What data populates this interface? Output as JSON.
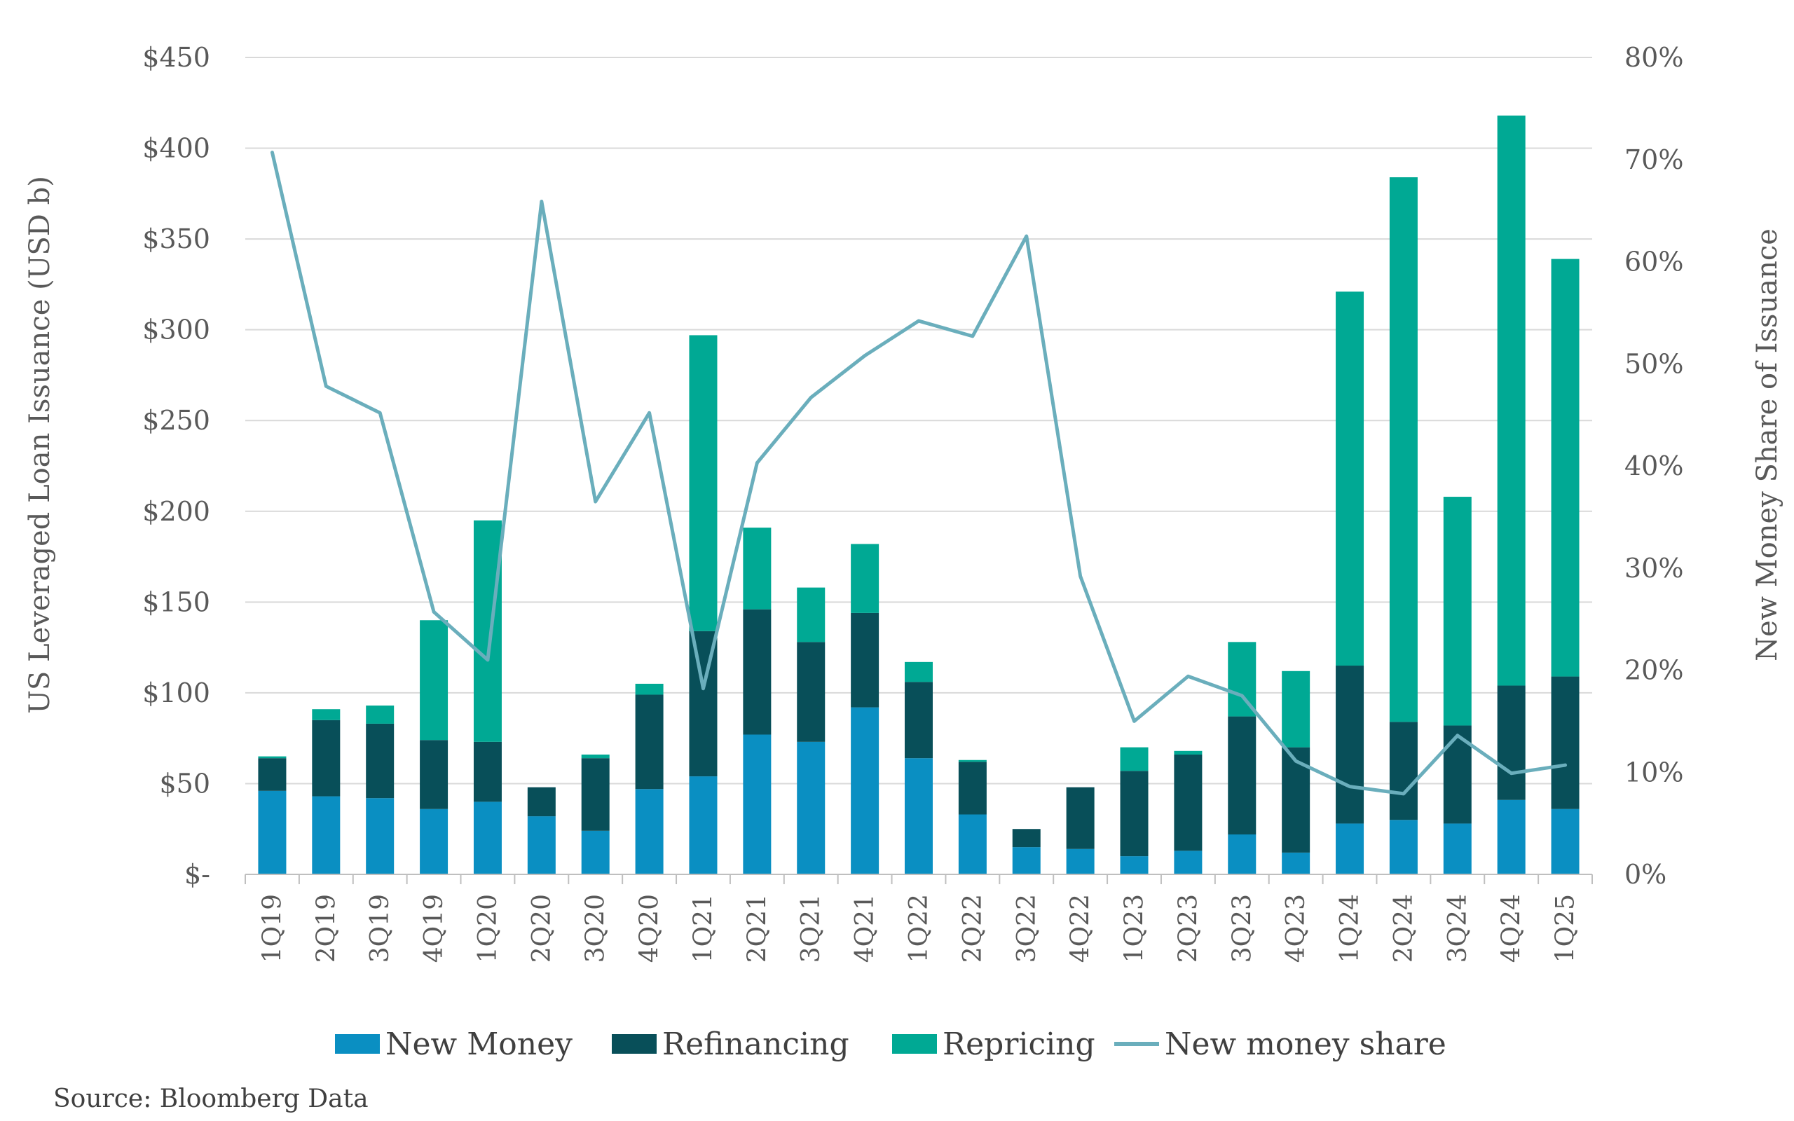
{
  "chart_data": {
    "type": "bar",
    "stacked": true,
    "categories": [
      "1Q19",
      "2Q19",
      "3Q19",
      "4Q19",
      "1Q20",
      "2Q20",
      "3Q20",
      "4Q20",
      "1Q21",
      "2Q21",
      "3Q21",
      "4Q21",
      "1Q22",
      "2Q22",
      "3Q22",
      "4Q22",
      "1Q23",
      "2Q23",
      "3Q23",
      "4Q23",
      "1Q24",
      "2Q24",
      "3Q24",
      "4Q24",
      "1Q25"
    ],
    "series": [
      {
        "name": "New Money",
        "type": "bar",
        "axis": "left",
        "color": "#0A8FC2",
        "values": [
          46,
          43,
          42,
          36,
          40,
          32,
          24,
          47,
          54,
          77,
          73,
          92,
          64,
          33,
          15,
          14,
          10,
          13,
          22,
          12,
          28,
          30,
          28,
          41,
          36
        ]
      },
      {
        "name": "Refinancing",
        "type": "bar",
        "axis": "left",
        "color": "#084F59",
        "values": [
          18,
          42,
          41,
          38,
          33,
          16,
          40,
          52,
          80,
          69,
          55,
          52,
          42,
          29,
          10,
          34,
          47,
          53,
          65,
          58,
          87,
          54,
          54,
          63,
          73
        ]
      },
      {
        "name": "Repricing",
        "type": "bar",
        "axis": "left",
        "color": "#00A994",
        "values": [
          1,
          6,
          10,
          66,
          122,
          0,
          2,
          6,
          163,
          45,
          30,
          38,
          11,
          1,
          0,
          0,
          13,
          2,
          41,
          42,
          206,
          300,
          126,
          314,
          230
        ]
      },
      {
        "name": "New money share",
        "type": "line",
        "axis": "right",
        "color": "#6AAEBC",
        "values": [
          70.7,
          47.8,
          45.2,
          25.7,
          21.0,
          65.9,
          36.5,
          45.2,
          18.2,
          40.3,
          46.7,
          50.8,
          54.2,
          52.7,
          62.5,
          29.2,
          15.0,
          19.4,
          17.5,
          11.1,
          8.6,
          7.9,
          13.6,
          9.9,
          10.7
        ]
      }
    ],
    "left_axis": {
      "label": "US Leveraged Loan Issuance (USD b)",
      "min": 0,
      "max": 450,
      "ticks": [
        0,
        50,
        100,
        150,
        200,
        250,
        300,
        350,
        400,
        450
      ],
      "tick_labels": [
        "$-",
        "$50",
        "$100",
        "$150",
        "$200",
        "$250",
        "$300",
        "$350",
        "$400",
        "$450"
      ]
    },
    "right_axis": {
      "label": "New Money Share of Issuance",
      "min": 0,
      "max": 80,
      "ticks": [
        0,
        10,
        20,
        30,
        40,
        50,
        60,
        70,
        80
      ],
      "tick_labels": [
        "0%",
        "10%",
        "20%",
        "30%",
        "40%",
        "50%",
        "60%",
        "70%",
        "80%"
      ]
    },
    "grid": true,
    "legend": "bottom"
  },
  "source": "Source: Bloomberg Data"
}
